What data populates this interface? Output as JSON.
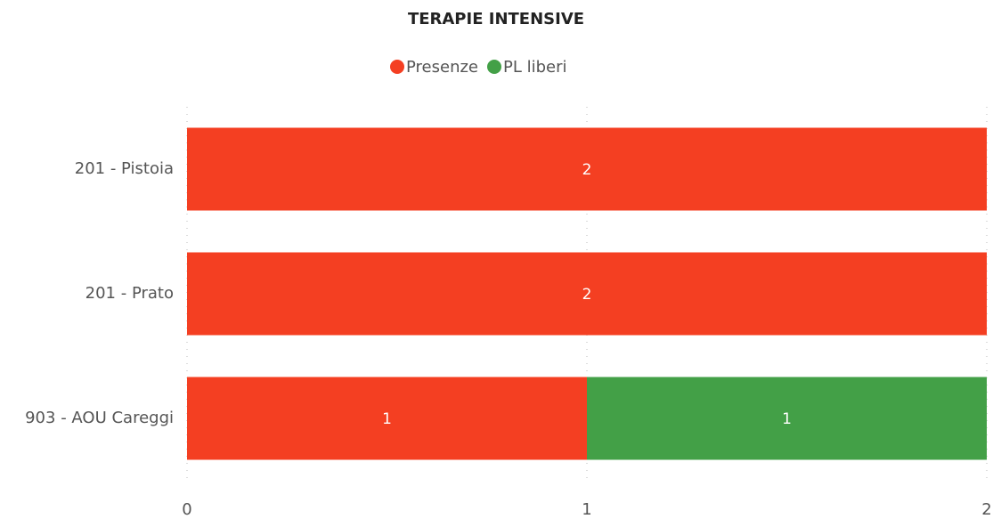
{
  "chart_data": {
    "type": "stacked_barh",
    "title": "TERAPIE INTENSIVE",
    "categories": [
      "201 - Pistoia",
      "201 - Prato",
      "903 - AOU Careggi"
    ],
    "series": [
      {
        "name": "Presenze",
        "color": "#f43f22",
        "values": [
          2,
          2,
          1
        ]
      },
      {
        "name": "PL liberi",
        "color": "#43a047",
        "values": [
          0,
          0,
          1
        ]
      }
    ],
    "xlim": [
      0,
      2
    ],
    "xticks": [
      0,
      1,
      2
    ],
    "grid": true,
    "legend": "top"
  }
}
